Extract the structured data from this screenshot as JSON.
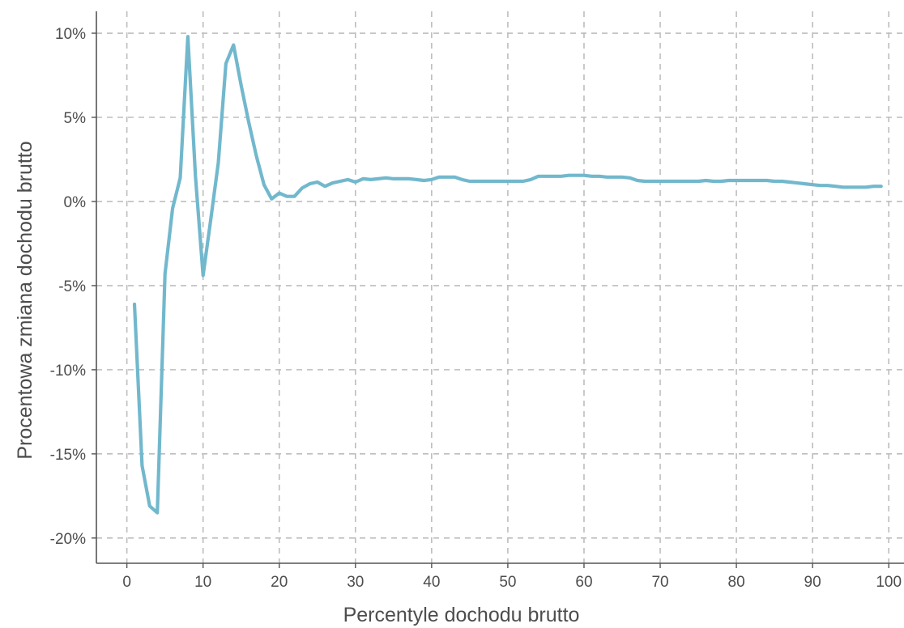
{
  "chart_data": {
    "type": "line",
    "xlabel": "Percentyle dochodu brutto",
    "ylabel": "Procentowa zmiana dochodu brutto",
    "xlim": [
      -4,
      102
    ],
    "ylim": [
      -21.5,
      11.3
    ],
    "x_ticks": [
      0,
      10,
      20,
      30,
      40,
      50,
      60,
      70,
      80,
      90,
      100
    ],
    "x_tick_labels": [
      "0",
      "10",
      "20",
      "30",
      "40",
      "50",
      "60",
      "70",
      "80",
      "90",
      "100"
    ],
    "y_ticks": [
      10,
      5,
      0,
      -5,
      -10,
      -15,
      -20
    ],
    "y_tick_labels": [
      "10%",
      "5%",
      "0%",
      "-5%",
      "-10%",
      "-15%",
      "-20%"
    ],
    "grid": true,
    "grid_style": "dashed",
    "line_color": "#72b8cd",
    "axis_color": "#555555",
    "series": [
      {
        "x": [
          1,
          2,
          3,
          4,
          5,
          6,
          7,
          8,
          9,
          10,
          11,
          12,
          13,
          14,
          15,
          16,
          17,
          18,
          19,
          20,
          21,
          22,
          23,
          24,
          25,
          26,
          27,
          28,
          29,
          30,
          31,
          32,
          33,
          34,
          35,
          36,
          37,
          38,
          39,
          40,
          41,
          42,
          43,
          44,
          45,
          46,
          47,
          48,
          49,
          50,
          51,
          52,
          53,
          54,
          55,
          56,
          57,
          58,
          59,
          60,
          61,
          62,
          63,
          64,
          65,
          66,
          67,
          68,
          69,
          70,
          71,
          72,
          73,
          74,
          75,
          76,
          77,
          78,
          79,
          80,
          81,
          82,
          83,
          84,
          85,
          86,
          87,
          88,
          89,
          90,
          91,
          92,
          93,
          94,
          95,
          96,
          97,
          98,
          99
        ],
        "y": [
          -6.1,
          -15.7,
          -18.1,
          -18.5,
          -4.3,
          -0.4,
          1.4,
          9.8,
          1.5,
          -4.4,
          -1.1,
          2.3,
          8.2,
          9.3,
          6.9,
          4.7,
          2.7,
          1.0,
          0.15,
          0.5,
          0.3,
          0.3,
          0.8,
          1.05,
          1.15,
          0.9,
          1.1,
          1.2,
          1.3,
          1.15,
          1.35,
          1.3,
          1.35,
          1.4,
          1.35,
          1.35,
          1.35,
          1.3,
          1.25,
          1.3,
          1.45,
          1.45,
          1.45,
          1.3,
          1.2,
          1.2,
          1.2,
          1.2,
          1.2,
          1.2,
          1.2,
          1.2,
          1.3,
          1.5,
          1.5,
          1.5,
          1.5,
          1.55,
          1.55,
          1.55,
          1.5,
          1.5,
          1.45,
          1.45,
          1.45,
          1.4,
          1.25,
          1.2,
          1.2,
          1.2,
          1.2,
          1.2,
          1.2,
          1.2,
          1.2,
          1.25,
          1.2,
          1.2,
          1.25,
          1.25,
          1.25,
          1.25,
          1.25,
          1.25,
          1.2,
          1.2,
          1.15,
          1.1,
          1.05,
          1.0,
          0.95,
          0.95,
          0.9,
          0.85,
          0.85,
          0.85,
          0.85,
          0.9,
          0.9
        ]
      }
    ]
  }
}
